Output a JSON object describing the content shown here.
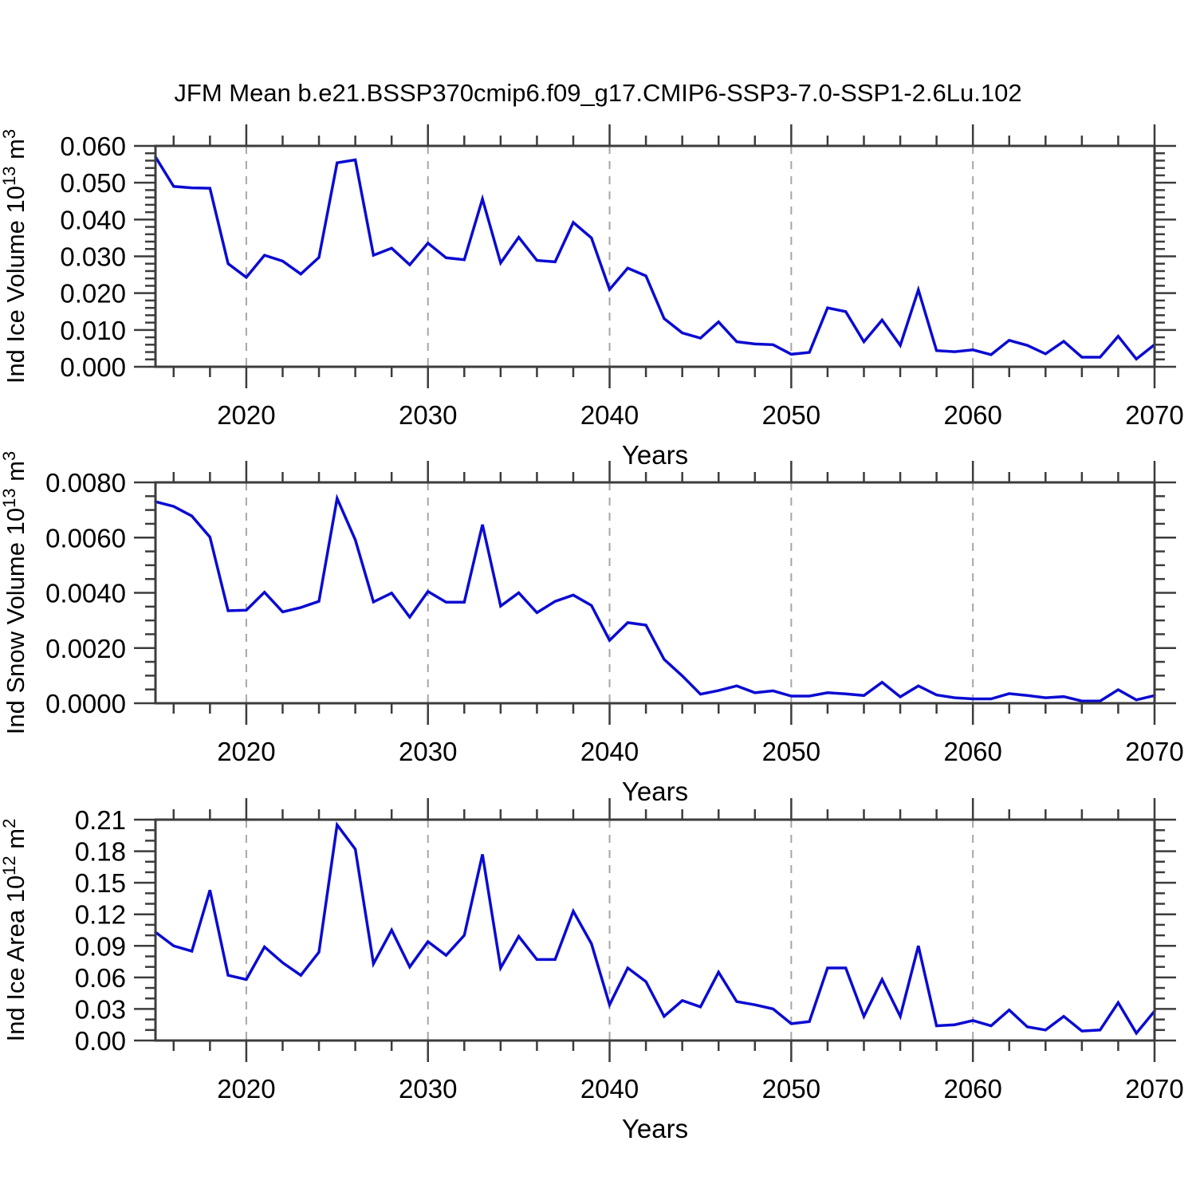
{
  "title": "JFM Mean b.e21.BSSP370cmip6.f09_g17.CMIP6-SSP3-7.0-SSP1-2.6Lu.102",
  "x_axis": {
    "label": "Years",
    "xlim": [
      2015,
      2070
    ],
    "major_ticks": [
      2020,
      2030,
      2040,
      2050,
      2060,
      2070
    ],
    "tick_labels": [
      "2020",
      "2030",
      "2040",
      "2050",
      "2060",
      "2070"
    ],
    "minor_step": 2,
    "grid_at": [
      2020,
      2030,
      2040,
      2050,
      2060
    ]
  },
  "colors": {
    "line": "#0b0bd2",
    "frame": "#3c3c3c",
    "grid": "#a6a6a6",
    "text": "#000000"
  },
  "chart_data": [
    {
      "type": "line",
      "panel": "ice-volume",
      "ylabel_segments": [
        {
          "t": "Ind Ice Volume 10"
        },
        {
          "t": "13",
          "sup": true
        },
        {
          "t": " m"
        },
        {
          "t": "3",
          "sup": true
        }
      ],
      "ylim": [
        0.0,
        0.06
      ],
      "ymajor_step": 0.01,
      "yminor_step": 0.002,
      "ytick_values": [
        0.0,
        0.01,
        0.02,
        0.03,
        0.04,
        0.05,
        0.06
      ],
      "ytick_labels": [
        "0.000",
        "0.010",
        "0.020",
        "0.030",
        "0.040",
        "0.050",
        "0.060"
      ],
      "x_start": 2015,
      "values": [
        0.057,
        0.049,
        0.0486,
        0.0485,
        0.028,
        0.0243,
        0.0303,
        0.0287,
        0.0252,
        0.0297,
        0.0554,
        0.0562,
        0.0303,
        0.0322,
        0.0277,
        0.0336,
        0.0296,
        0.0291,
        0.0456,
        0.0282,
        0.0352,
        0.0289,
        0.0285,
        0.0392,
        0.035,
        0.021,
        0.0268,
        0.0247,
        0.0131,
        0.0092,
        0.0078,
        0.0122,
        0.0068,
        0.0062,
        0.006,
        0.0034,
        0.0039,
        0.016,
        0.015,
        0.0068,
        0.0127,
        0.0058,
        0.0209,
        0.0044,
        0.0041,
        0.0046,
        0.0033,
        0.0072,
        0.0058,
        0.0035,
        0.0069,
        0.0026,
        0.0026,
        0.0083,
        0.0021,
        0.006
      ]
    },
    {
      "type": "line",
      "panel": "snow-volume",
      "ylabel_segments": [
        {
          "t": "Ind Snow Volume 10"
        },
        {
          "t": "13",
          "sup": true
        },
        {
          "t": " m"
        },
        {
          "t": "3",
          "sup": true
        }
      ],
      "ylim": [
        0.0,
        0.008
      ],
      "ymajor_step": 0.002,
      "yminor_step": 0.0005,
      "ytick_values": [
        0.0,
        0.002,
        0.004,
        0.006,
        0.008
      ],
      "ytick_labels": [
        "0.0000",
        "0.0020",
        "0.0040",
        "0.0060",
        "0.0080"
      ],
      "x_start": 2015,
      "values": [
        0.0073,
        0.00713,
        0.00678,
        0.00602,
        0.00335,
        0.00337,
        0.00402,
        0.00331,
        0.00347,
        0.00369,
        0.00742,
        0.00592,
        0.00367,
        0.00399,
        0.00312,
        0.00405,
        0.00366,
        0.00366,
        0.00647,
        0.00352,
        0.004,
        0.00328,
        0.00369,
        0.00392,
        0.00354,
        0.00228,
        0.00292,
        0.00283,
        0.00159,
        0.00099,
        0.00033,
        0.00046,
        0.00063,
        0.00038,
        0.00045,
        0.00026,
        0.00026,
        0.00038,
        0.00034,
        0.00028,
        0.00076,
        0.00023,
        0.00063,
        0.0003,
        0.0002,
        0.00016,
        0.00016,
        0.00035,
        0.00028,
        0.0002,
        0.00024,
        8e-05,
        8e-05,
        0.00049,
        0.00012,
        0.00028
      ]
    },
    {
      "type": "line",
      "panel": "ice-area",
      "ylabel_segments": [
        {
          "t": "Ind Ice Area 10"
        },
        {
          "t": "12",
          "sup": true
        },
        {
          "t": " m"
        },
        {
          "t": "2",
          "sup": true
        }
      ],
      "ylim": [
        0.0,
        0.21
      ],
      "ymajor_step": 0.03,
      "yminor_step": 0.01,
      "ytick_values": [
        0.0,
        0.03,
        0.06,
        0.09,
        0.12,
        0.15,
        0.18,
        0.21
      ],
      "ytick_labels": [
        "0.00",
        "0.03",
        "0.06",
        "0.09",
        "0.12",
        "0.15",
        "0.18",
        "0.21"
      ],
      "x_start": 2015,
      "values": [
        0.103,
        0.09,
        0.085,
        0.143,
        0.062,
        0.058,
        0.089,
        0.074,
        0.062,
        0.084,
        0.205,
        0.182,
        0.073,
        0.105,
        0.07,
        0.094,
        0.081,
        0.1,
        0.177,
        0.069,
        0.099,
        0.077,
        0.077,
        0.123,
        0.092,
        0.034,
        0.069,
        0.056,
        0.023,
        0.038,
        0.032,
        0.065,
        0.037,
        0.034,
        0.03,
        0.016,
        0.018,
        0.069,
        0.069,
        0.023,
        0.058,
        0.023,
        0.09,
        0.014,
        0.015,
        0.019,
        0.014,
        0.029,
        0.013,
        0.01,
        0.023,
        0.009,
        0.01,
        0.036,
        0.007,
        0.028
      ]
    }
  ]
}
